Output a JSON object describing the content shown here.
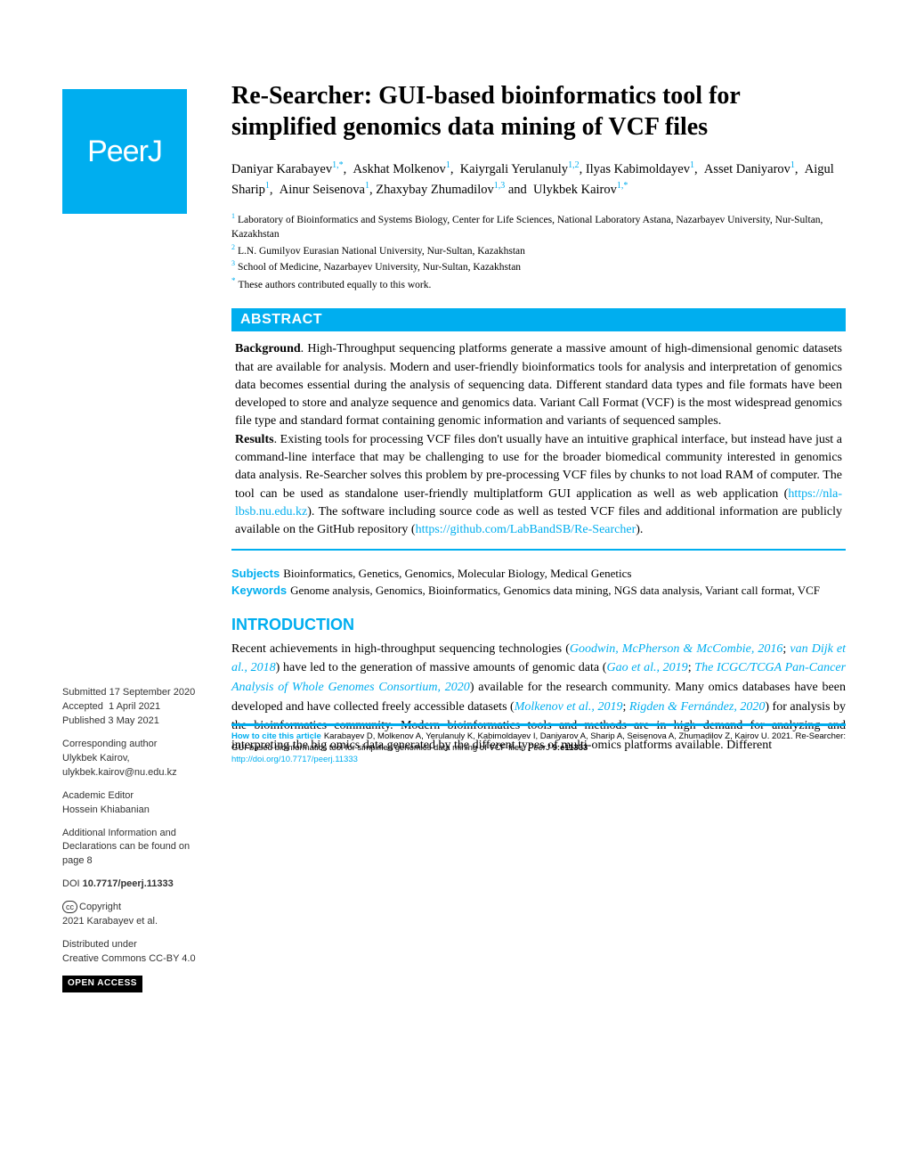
{
  "journal_logo_text": "PeerJ",
  "title": "Re-Searcher: GUI-based bioinformatics tool for simplified genomics data mining of VCF files",
  "authors_html": "Daniyar Karabayev<sup>1,*</sup>, &nbsp;Askhat Molkenov<sup>1</sup>, &nbsp;Kaiyrgali Yerulanuly<sup>1,2</sup>, Ilyas Kabimoldayev<sup>1</sup>, &nbsp;Asset Daniyarov<sup>1</sup>, &nbsp;Aigul Sharip<sup>1</sup>, &nbsp;Ainur Seisenova<sup>1</sup>, Zhaxybay Zhumadilov<sup>1,3</sup> <span class='conj'>and</span> &nbsp;Ulykbek Kairov<sup>1,*</sup>",
  "affiliations": [
    {
      "num": "1",
      "text": "Laboratory of Bioinformatics and Systems Biology, Center for Life Sciences, National Laboratory Astana, Nazarbayev University, Nur-Sultan, Kazakhstan"
    },
    {
      "num": "2",
      "text": "L.N. Gumilyov Eurasian National University, Nur-Sultan, Kazakhstan"
    },
    {
      "num": "3",
      "text": "School of Medicine, Nazarbayev University, Nur-Sultan, Kazakhstan"
    },
    {
      "num": "*",
      "text": "These authors contributed equally to this work."
    }
  ],
  "abstract_label": "ABSTRACT",
  "abstract_html": "<b>Background</b>. High-Throughput sequencing platforms generate a massive amount of high-dimensional genomic datasets that are available for analysis. Modern and user-friendly bioinformatics tools for analysis and interpretation of genomics data becomes essential during the analysis of sequencing data. Different standard data types and file formats have been developed to store and analyze sequence and genomics data. Variant Call Format (VCF) is the most widespread genomics file type and standard format containing genomic information and variants of sequenced samples.<br><b>Results</b>. Existing tools for processing VCF files don't usually have an intuitive graphical interface, but instead have just a command-line interface that may be challenging to use for the broader biomedical community interested in genomics data analysis. Re-Searcher solves this problem by pre-processing VCF files by chunks to not load RAM of computer. The tool can be used as standalone user-friendly multiplatform GUI application as well as web application (<span class='link'>https://nla-lbsb.nu.edu.kz</span>). The software including source code as well as tested VCF files and additional information are publicly available on the GitHub repository (<span class='link'>https://github.com/LabBandSB/Re-Searcher</span>).",
  "sidebar": {
    "submitted_label": "Submitted",
    "submitted_date": "17 September 2020",
    "accepted_label": "Accepted",
    "accepted_date": "1 April 2021",
    "published_label": "Published",
    "published_date": "3 May 2021",
    "corr_label": "Corresponding author",
    "corr_name": "Ulykbek Kairov,",
    "corr_email": "ulykbek.kairov@nu.edu.kz",
    "editor_label": "Academic Editor",
    "editor_name": "Hossein Khiabanian",
    "addinfo": "Additional Information and Declarations can be found on page 8",
    "doi_label": "DOI",
    "doi": "10.7717/peerj.11333",
    "copyright_label": "Copyright",
    "copyright_text": "2021 Karabayev et al.",
    "dist_label": "Distributed under",
    "dist_text": "Creative Commons CC-BY 4.0",
    "open_access": "OPEN ACCESS"
  },
  "subjects_label": "Subjects",
  "subjects_text": "Bioinformatics, Genetics, Genomics, Molecular Biology, Medical Genetics",
  "keywords_label": "Keywords",
  "keywords_text": "Genome analysis, Genomics, Bioinformatics, Genomics data mining, NGS data analysis, Variant call format, VCF",
  "intro_heading": "INTRODUCTION",
  "intro_html": "Recent achievements in high-throughput sequencing technologies (<span class='cite'>Goodwin, McPherson &amp; McCombie, 2016</span>; <span class='cite'>van Dijk et al., 2018</span>) have led to the generation of massive amounts of genomic data (<span class='cite'>Gao et al., 2019</span>; <span class='cite'>The ICGC/TCGA Pan-Cancer Analysis of Whole Genomes Consortium, 2020</span>) available for the research community. Many omics databases have been developed and have collected freely accessible datasets (<span class='cite'>Molkenov et al., 2019</span>; <span class='cite'>Rigden &amp; Fern&aacute;ndez, 2020</span>) for analysis by the bioinformatics community. Modern bioinformatics tools and methods are in high demand for analyzing and interpreting the big omics data generated by the different types of multi-omics platforms available. Different",
  "footer": {
    "cite_label": "How to cite this article",
    "cite_text": "Karabayev D, Molkenov A, Yerulanuly K, Kabimoldayev I, Daniyarov A, Sharip A, Seisenova A, Zhumadilov Z, Kairov U. 2021. Re-Searcher: GUI-based bioinformatics tool for simplified genomics data mining of VCF files.",
    "journal": "PeerJ",
    "vol": "9:e11333",
    "doi": "http://doi.org/10.7717/peerj.11333"
  },
  "colors": {
    "brand": "#00aeef",
    "text": "#000000",
    "bg": "#ffffff"
  }
}
